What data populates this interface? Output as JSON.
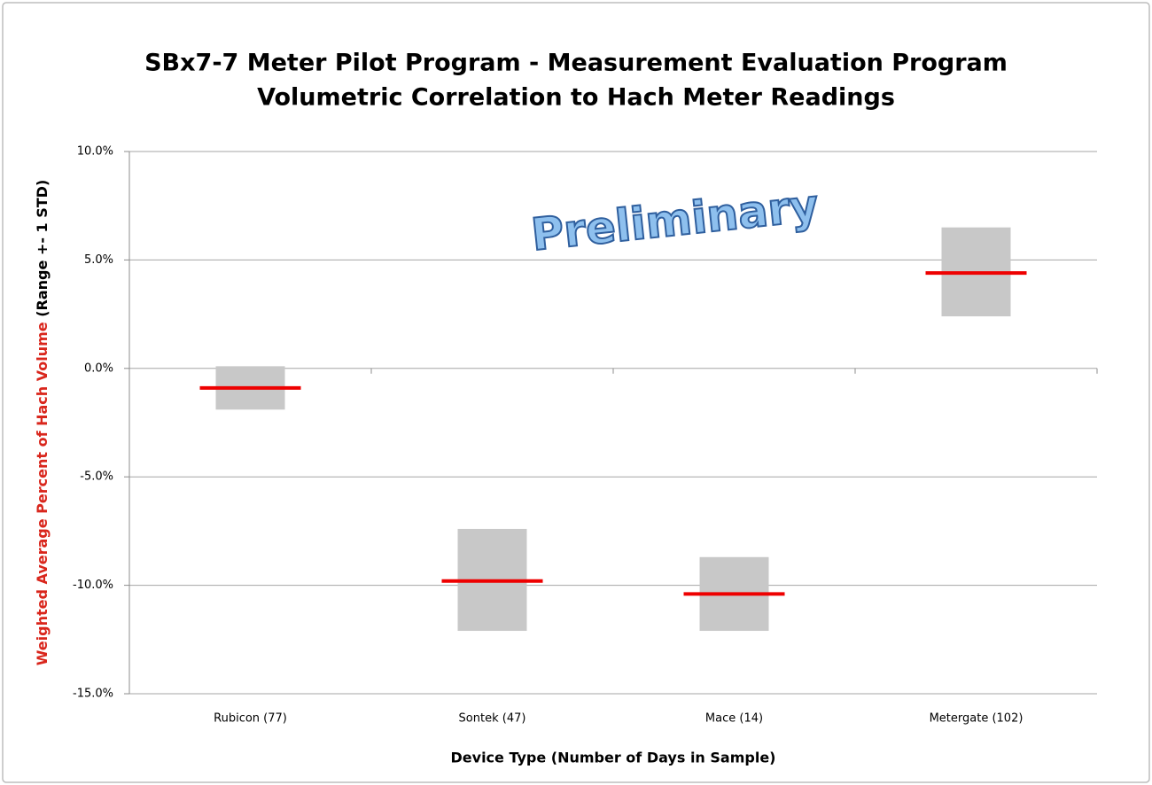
{
  "chart_data": {
    "type": "range",
    "title": [
      "SBx7-7 Meter Pilot Program - Measurement Evaluation Program",
      "Volumetric Correlation to Hach Meter Readings"
    ],
    "ylabel": [
      "Weighted Average Percent of Hach Volume",
      "(Range +- 1 STD)"
    ],
    "xlabel": "Device Type (Number of Days in Sample)",
    "annotation": "Preliminary",
    "categories": [
      "Rubicon (77)",
      "Sontek (47)",
      "Mace (14)",
      "Metergate (102)"
    ],
    "low": [
      -1.9,
      -12.1,
      -12.1,
      2.4
    ],
    "high": [
      0.1,
      -7.4,
      -8.7,
      6.5
    ],
    "mean": [
      -0.9,
      -9.8,
      -10.4,
      4.4
    ],
    "range_color": "#c8c8c8",
    "mean_color": "#ee0000",
    "ylabel_color": "#d9261c",
    "ylim": [
      -15,
      10
    ],
    "yticks": [
      {
        "value": -15,
        "label": "-15.0%"
      },
      {
        "value": -10,
        "label": "-10.0%"
      },
      {
        "value": -5,
        "label": "-5.0%"
      },
      {
        "value": 0,
        "label": "0.0%"
      },
      {
        "value": 5,
        "label": "5.0%"
      },
      {
        "value": 10,
        "label": "10.0%"
      }
    ],
    "grid": true
  }
}
